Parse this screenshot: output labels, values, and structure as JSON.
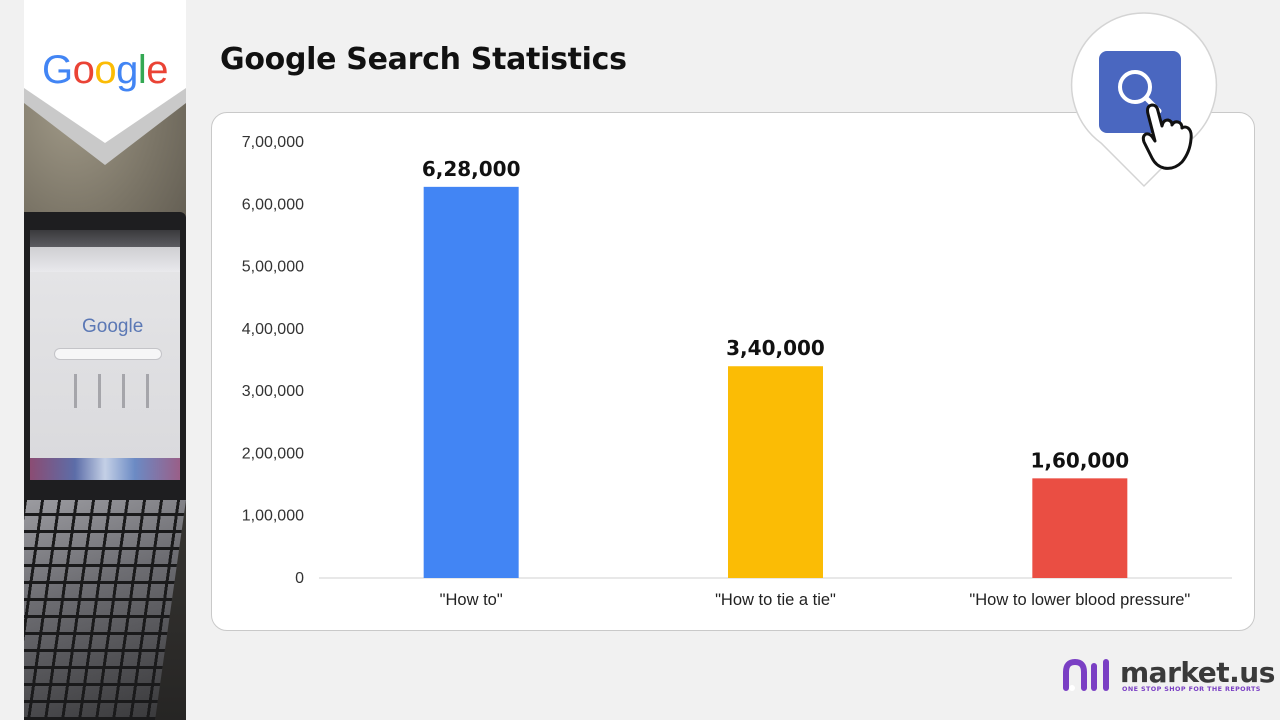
{
  "page": {
    "title": "Google Search Statistics"
  },
  "sidebar": {
    "logo_text": "Google",
    "logo_colors": [
      "#4285F4",
      "#EA4335",
      "#FBBC05",
      "#4285F4",
      "#34A853",
      "#EA4335"
    ],
    "photo_logo_text": "Google"
  },
  "search_badge": {
    "icon": "search-icon",
    "pointer_icon": "hand-pointer-icon",
    "color": "#4a67c0"
  },
  "brand": {
    "name": "market.us",
    "tagline": "ONE STOP SHOP FOR THE REPORTS",
    "accent": "#7a3fc4"
  },
  "chart_data": {
    "type": "bar",
    "title": "",
    "xlabel": "",
    "ylabel": "",
    "categories": [
      "\"How to\"",
      "\"How to tie a tie\"",
      "\"How to lower blood pressure\""
    ],
    "values": [
      628000,
      340000,
      160000
    ],
    "value_labels": [
      "6,28,000",
      "3,40,000",
      "1,60,000"
    ],
    "colors": [
      "#4285F4",
      "#FBBC05",
      "#EA4E43"
    ],
    "ylim": [
      0,
      700000
    ],
    "y_ticks": [
      0,
      100000,
      200000,
      300000,
      400000,
      500000,
      600000,
      700000
    ],
    "y_tick_labels": [
      "0",
      "1,00,000",
      "2,00,000",
      "3,00,000",
      "4,00,000",
      "5,00,000",
      "6,00,000",
      "7,00,000"
    ],
    "grid": false,
    "legend": "none"
  }
}
